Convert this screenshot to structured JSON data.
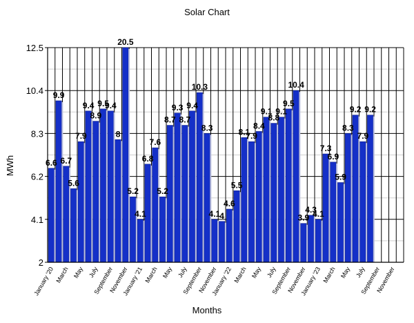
{
  "chart_data": {
    "type": "bar",
    "title": "Solar Chart",
    "xlabel": "Months",
    "ylabel": "MWh",
    "ylim": [
      2,
      12.5
    ],
    "yticks": [
      "2",
      "4.1",
      "6.2",
      "8.3",
      "10.4",
      "12.5"
    ],
    "grid": true,
    "legend": "none",
    "bar_color": "#1530c8",
    "categories": [
      "Jan 2020",
      "Feb 2020",
      "Mar 2020",
      "Apr 2020",
      "May 2020",
      "Jun 2020",
      "Jul 2020",
      "Aug 2020",
      "Sep 2020",
      "Oct 2020",
      "Nov 2020",
      "Dec 2020",
      "Jan 2021",
      "Feb 2021",
      "Mar 2021",
      "Apr 2021",
      "May 2021",
      "Jun 2021",
      "Jul 2021",
      "Aug 2021",
      "Sep 2021",
      "Oct 2021",
      "Nov 2021",
      "Dec 2021",
      "Jan 2022",
      "Feb 2022",
      "Mar 2022",
      "Apr 2022",
      "May 2022",
      "Jun 2022",
      "Jul 2022",
      "Aug 2022",
      "Sep 2022",
      "Oct 2022",
      "Nov 2022",
      "Dec 2022",
      "Jan 2023",
      "Feb 2023",
      "Mar 2023",
      "Apr 2023",
      "May 2023",
      "Jun 2023",
      "Jul 2023",
      "Aug 2023",
      "Sep 2023",
      "Oct 2023",
      "Nov 2023",
      "Dec 2023"
    ],
    "values": [
      6.6,
      9.9,
      6.7,
      5.6,
      7.9,
      9.4,
      8.9,
      9.5,
      9.4,
      8,
      20.5,
      5.2,
      4.1,
      6.8,
      7.6,
      5.2,
      8.7,
      9.3,
      8.7,
      9.4,
      10.3,
      8.3,
      4.1,
      4,
      4.6,
      5.5,
      8.1,
      7.9,
      8.4,
      9.1,
      8.8,
      9.1,
      9.5,
      10.4,
      3.9,
      4.3,
      4.1,
      7.3,
      6.9,
      5.9,
      8.3,
      9.2,
      7.9,
      9.2,
      null,
      null,
      null,
      null
    ],
    "value_labels": [
      "6.6",
      "9.9",
      "6.7",
      "5.6",
      "7.9",
      "9.4",
      "8.9",
      "9.5",
      "9.4",
      "8",
      "20.5",
      "5.2",
      "4.1",
      "6.8",
      "7.6",
      "5.2",
      "8.7",
      "9.3",
      "8.7",
      "9.4",
      "10.3",
      "8.3",
      "4.1",
      "4",
      "4.6",
      "5.5",
      "8.1",
      "7.9",
      "8.4",
      "9.1",
      "8.8",
      "9.1",
      "9.5",
      "10.4",
      "3.9",
      "4.3",
      "4.1",
      "7.3",
      "6.9",
      "5.9",
      "8.3",
      "9.2",
      "7.9",
      "9.2",
      "",
      "",
      "",
      ""
    ],
    "xtick_labels": [
      "January '20",
      "March",
      "May",
      "July",
      "September",
      "November",
      "January '21",
      "March",
      "May",
      "July",
      "September",
      "November",
      "January '22",
      "March",
      "May",
      "July",
      "September",
      "November",
      "January '23",
      "March",
      "May",
      "July",
      "September",
      "November"
    ]
  }
}
